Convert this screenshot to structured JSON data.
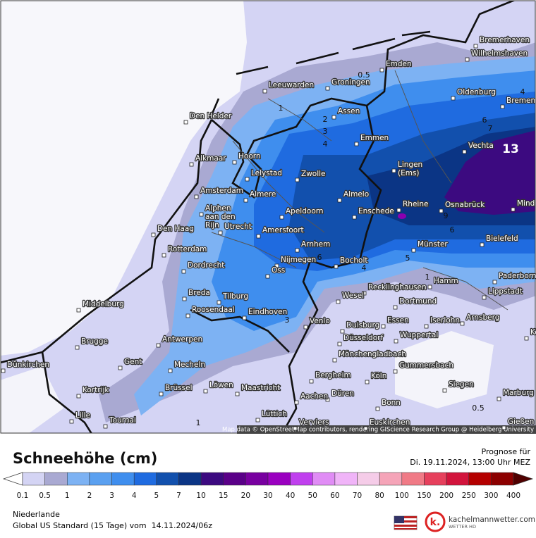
{
  "map": {
    "attribution": "Map data © OpenStreetMap contributors, rendering GIScience Research Group @ Heidelberg University",
    "cities": [
      "Bremerhaven",
      "Wilhelmshaven",
      "Emden",
      "Leeuwarden",
      "Groningen",
      "Oldenburg",
      "Bremen",
      "Den Helder",
      "Assen",
      "Emmen",
      "Vechta",
      "Alkmaar",
      "Hoorn",
      "Lelystad",
      "Zwolle",
      [
        "Lingen",
        "(Ems)"
      ],
      "Amsterdam",
      "Almere",
      "Almelo",
      "Rheine",
      "Osnabrück",
      "Mind",
      [
        "Alphen",
        "aan den",
        "Rijn"
      ],
      "Apeldoorn",
      "Enschede",
      "Den Haag",
      "Utrecht",
      "Amersfoort",
      "Bielefeld",
      "Rotterdam",
      "Arnhem",
      "Münster",
      "Dordrecht",
      "Nijmegen",
      "Bocholt",
      "Oss",
      "Hamm",
      "Paderborn",
      "Recklinghausen",
      "Breda",
      "Tilburg",
      "Wesel",
      "Lippstadt",
      "Middelburg",
      "Dortmund",
      "Roosendaal",
      "Eindhoven",
      "Arnsberg",
      "Venlo",
      "Essen",
      "Iserlohn",
      "Duisburg",
      "Korbac",
      "Wuppertal",
      "Düsseldorf",
      "Brugge",
      "Antwerpen",
      "Mönchengladbach",
      "Gent",
      "Mecheln",
      "Gummersbach",
      "Dünkirchen",
      "Bergheim",
      "Köln",
      "Kortrijk",
      "Brüssel",
      "Löwen",
      "Maastricht",
      "Siegen",
      "Marburg",
      "Düren",
      "Aachen",
      "Bonn",
      "Lille",
      "Lüttich",
      "Tournai",
      "Gießen",
      "Verviers",
      "Euskirchen"
    ],
    "contour_labels": [
      0.5,
      1,
      2,
      3,
      4,
      13,
      4,
      6,
      7,
      9,
      6,
      5,
      4,
      6,
      3,
      1,
      0.5,
      1
    ]
  },
  "legend": {
    "title": "Schneehöhe (cm)",
    "labels": [
      0.1,
      0.5,
      1,
      2,
      3,
      4,
      5,
      7,
      10,
      15,
      20,
      30,
      40,
      50,
      60,
      70,
      80,
      100,
      150,
      200,
      250,
      300,
      400
    ],
    "colors": [
      "#ffffff",
      "#d4d4f4",
      "#a9a9d2",
      "#7db2f3",
      "#5aa0f0",
      "#3f8eee",
      "#1f6be0",
      "#1250ad",
      "#0b3585",
      "#3c0a80",
      "#5a0088",
      "#7800a0",
      "#9a00c0",
      "#c040ee",
      "#e08cf5",
      "#f0b4f8",
      "#f5cce8",
      "#f5a4b8",
      "#f07a86",
      "#e6405c",
      "#d2143c",
      "#b40000",
      "#8c0000",
      "#500000"
    ]
  },
  "footer": {
    "forecast_label": "Prognose für",
    "forecast_time": "Di. 19.11.2024, 13:00 Uhr MEZ",
    "region": "Niederlande",
    "model_run": "Global US Standard (15 Tage) vom  14.11.2024/06z",
    "logo_mark": "k.",
    "brand": "kachelmannwetter.com",
    "brand_sub": "WETTER HD"
  }
}
